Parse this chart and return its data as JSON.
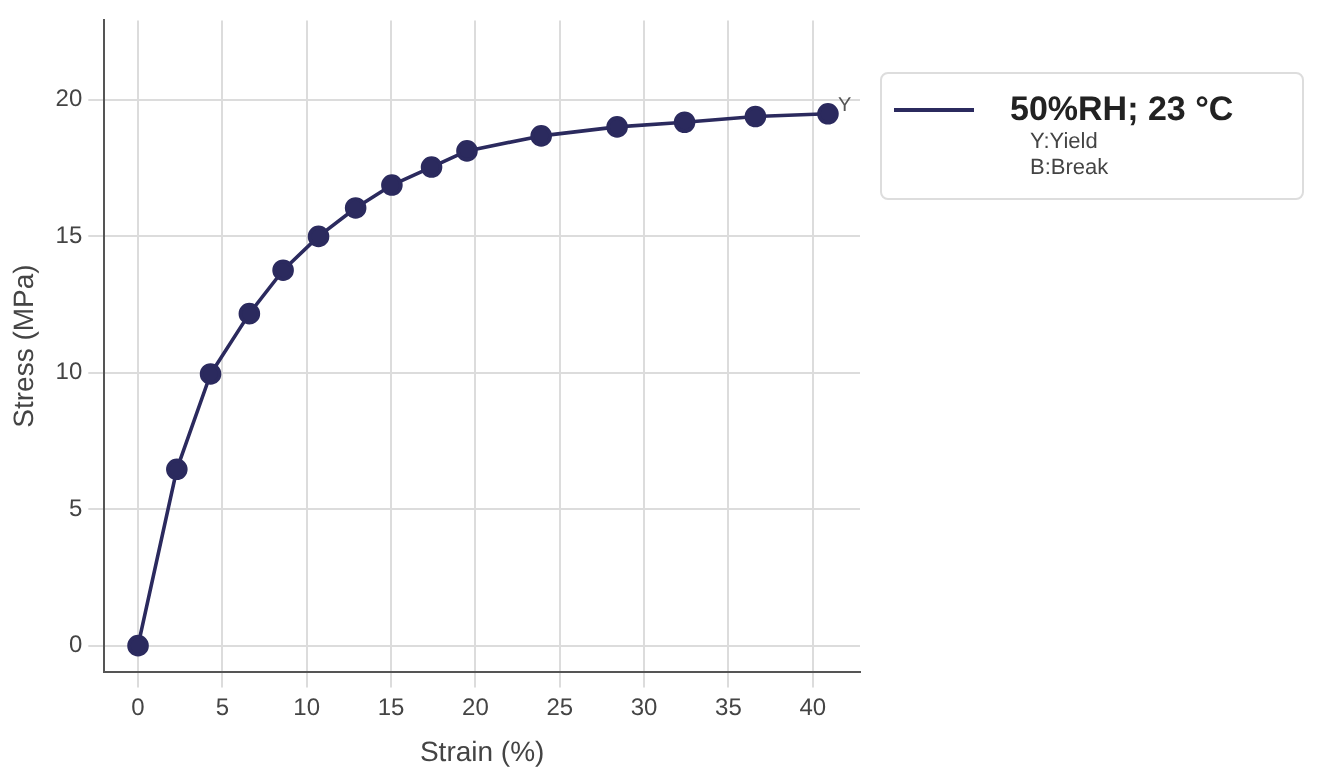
{
  "chart_data": {
    "type": "line",
    "xlabel": "Strain (%)",
    "ylabel": "Stress (MPa)",
    "series": [
      {
        "name": "50%RH; 23 °C",
        "color": "#2b2a5e",
        "x": [
          0,
          2.3,
          4.3,
          6.6,
          8.6,
          10.7,
          12.9,
          15.05,
          17.4,
          19.5,
          23.9,
          28.4,
          32.4,
          36.6,
          40.9
        ],
        "values": [
          0,
          6.46,
          9.95,
          12.16,
          13.75,
          14.99,
          16.03,
          16.87,
          17.53,
          18.12,
          18.67,
          19.0,
          19.17,
          19.38,
          19.48
        ]
      }
    ],
    "xlim": [
      -2,
      42.8
    ],
    "xticks": [
      0,
      5,
      10,
      15,
      20,
      25,
      30,
      35,
      40
    ],
    "ylim": [
      -0.95,
      22.9
    ],
    "yticks": [
      0,
      5,
      10,
      15,
      20
    ],
    "annotations": [
      {
        "text": "Y",
        "x": 40.9,
        "y": 19.48
      },
      "Y:Yield",
      "B:Break"
    ],
    "grid": true,
    "legend": "right",
    "marker": "circle",
    "line_style": "solid"
  }
}
